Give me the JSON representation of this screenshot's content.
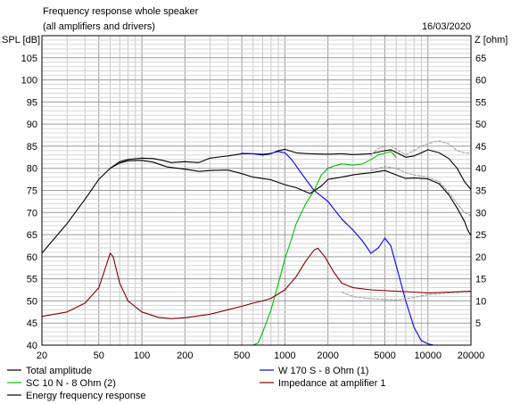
{
  "header": {
    "title": "Frequency response whole speaker",
    "subtitle": "(all amplifiers and drivers)",
    "date": "16/03/2020"
  },
  "chart_data": {
    "type": "line",
    "xscale": "log",
    "grid": true,
    "xlim": [
      20,
      20000
    ],
    "ylim": [
      40,
      110
    ],
    "y2lim": [
      0,
      70
    ],
    "ylabel": "SPL [dB]",
    "y2label": "Z [ohm]",
    "xticks": [
      {
        "v": 20,
        "label": "20"
      },
      {
        "v": 50,
        "label": "50"
      },
      {
        "v": 100,
        "label": "100"
      },
      {
        "v": 200,
        "label": "200"
      },
      {
        "v": 500,
        "label": "500"
      },
      {
        "v": 1000,
        "label": "1000"
      },
      {
        "v": 2000,
        "label": "2000"
      },
      {
        "v": 5000,
        "label": "5000"
      },
      {
        "v": 10000,
        "label": "10000"
      },
      {
        "v": 20000,
        "label": "20000"
      }
    ],
    "yticks": [
      {
        "v": 40,
        "label": "40"
      },
      {
        "v": 45,
        "label": "45"
      },
      {
        "v": 50,
        "label": "50"
      },
      {
        "v": 55,
        "label": "55"
      },
      {
        "v": 60,
        "label": "60"
      },
      {
        "v": 65,
        "label": "65"
      },
      {
        "v": 70,
        "label": "70"
      },
      {
        "v": 75,
        "label": "75"
      },
      {
        "v": 80,
        "label": "80"
      },
      {
        "v": 85,
        "label": "85"
      },
      {
        "v": 90,
        "label": "90"
      },
      {
        "v": 95,
        "label": "95"
      },
      {
        "v": 100,
        "label": "100"
      },
      {
        "v": 105,
        "label": "105"
      }
    ],
    "y2ticks": [
      {
        "v": 5,
        "label": "5"
      },
      {
        "v": 10,
        "label": "10"
      },
      {
        "v": 15,
        "label": "15"
      },
      {
        "v": 20,
        "label": "20"
      },
      {
        "v": 25,
        "label": "25"
      },
      {
        "v": 30,
        "label": "30"
      },
      {
        "v": 35,
        "label": "35"
      },
      {
        "v": 40,
        "label": "40"
      },
      {
        "v": 45,
        "label": "45"
      },
      {
        "v": 50,
        "label": "50"
      },
      {
        "v": 55,
        "label": "55"
      },
      {
        "v": 60,
        "label": "60"
      },
      {
        "v": 65,
        "label": "65"
      }
    ],
    "series": [
      {
        "name": "Total amplitude",
        "color": "#000000",
        "style": "solid",
        "axis": "left",
        "points": [
          [
            20,
            60.8
          ],
          [
            30,
            67.5
          ],
          [
            40,
            73
          ],
          [
            50,
            77.5
          ],
          [
            60,
            80
          ],
          [
            70,
            81.5
          ],
          [
            80,
            82
          ],
          [
            100,
            82.3
          ],
          [
            120,
            82.2
          ],
          [
            140,
            81.8
          ],
          [
            160,
            81.3
          ],
          [
            200,
            81.5
          ],
          [
            250,
            81.3
          ],
          [
            300,
            82.3
          ],
          [
            400,
            82.8
          ],
          [
            500,
            83.3
          ],
          [
            600,
            83.3
          ],
          [
            700,
            83
          ],
          [
            800,
            83.3
          ],
          [
            900,
            84
          ],
          [
            1000,
            84.3
          ],
          [
            1200,
            83.5
          ],
          [
            1500,
            83.3
          ],
          [
            2000,
            83.2
          ],
          [
            2500,
            83.3
          ],
          [
            3000,
            83.1
          ],
          [
            4000,
            83.3
          ],
          [
            5000,
            84
          ],
          [
            5500,
            84.2
          ],
          [
            6000,
            83.6
          ],
          [
            7000,
            82.5
          ],
          [
            8000,
            82.8
          ],
          [
            9000,
            83.5
          ],
          [
            10000,
            84.2
          ],
          [
            12000,
            83.5
          ],
          [
            14000,
            82.2
          ],
          [
            16000,
            80
          ],
          [
            18000,
            77
          ],
          [
            20000,
            75.2
          ]
        ]
      },
      {
        "name": "W 170 S - 8 Ohm (1)",
        "color": "#0000ff",
        "style": "solid",
        "axis": "left",
        "points": [
          [
            500,
            83.4
          ],
          [
            600,
            83.3
          ],
          [
            700,
            83.2
          ],
          [
            800,
            83.4
          ],
          [
            900,
            83.8
          ],
          [
            1000,
            83.5
          ],
          [
            1100,
            82.2
          ],
          [
            1200,
            80.5
          ],
          [
            1400,
            77.5
          ],
          [
            1600,
            75
          ],
          [
            2000,
            72.5
          ],
          [
            2500,
            68.5
          ],
          [
            3000,
            66
          ],
          [
            3500,
            63.5
          ],
          [
            4000,
            60.8
          ],
          [
            4500,
            62
          ],
          [
            5000,
            64.2
          ],
          [
            5500,
            62.5
          ],
          [
            6000,
            58
          ],
          [
            7000,
            50
          ],
          [
            8000,
            44
          ],
          [
            9000,
            41
          ],
          [
            10000,
            40.3
          ],
          [
            11000,
            40
          ]
        ]
      },
      {
        "name": "SC 10 N - 8 Ohm (2)",
        "color": "#00c000",
        "style": "solid",
        "axis": "left",
        "points": [
          [
            20,
            40
          ],
          [
            600,
            40
          ],
          [
            650,
            40.5
          ],
          [
            700,
            43
          ],
          [
            750,
            45.5
          ],
          [
            800,
            48
          ],
          [
            900,
            54
          ],
          [
            1000,
            59.5
          ],
          [
            1100,
            63.5
          ],
          [
            1200,
            67.5
          ],
          [
            1400,
            72
          ],
          [
            1600,
            75
          ],
          [
            1800,
            78.5
          ],
          [
            2000,
            80
          ],
          [
            2200,
            80.5
          ],
          [
            2500,
            81
          ],
          [
            3000,
            80.7
          ],
          [
            3500,
            81
          ],
          [
            4000,
            82
          ],
          [
            4500,
            83
          ],
          [
            5000,
            83.4
          ],
          [
            5500,
            83.8
          ],
          [
            6000,
            82.5
          ]
        ]
      },
      {
        "name": "Energy frequency response",
        "color": "#000000",
        "style": "solid",
        "axis": "left",
        "points": [
          [
            60,
            80
          ],
          [
            70,
            81.2
          ],
          [
            80,
            81.7
          ],
          [
            100,
            81.8
          ],
          [
            120,
            81.4
          ],
          [
            150,
            80.3
          ],
          [
            200,
            79.8
          ],
          [
            250,
            79.3
          ],
          [
            300,
            79.5
          ],
          [
            400,
            79.6
          ],
          [
            500,
            78.8
          ],
          [
            600,
            78
          ],
          [
            800,
            77.4
          ],
          [
            1000,
            76.3
          ],
          [
            1200,
            75.6
          ],
          [
            1500,
            74.3
          ],
          [
            1800,
            76
          ],
          [
            2000,
            77.5
          ],
          [
            2500,
            78
          ],
          [
            3000,
            78.5
          ],
          [
            3500,
            78.8
          ],
          [
            4000,
            79
          ],
          [
            5000,
            79.5
          ],
          [
            6000,
            78.5
          ],
          [
            7000,
            77.7
          ],
          [
            8000,
            77.8
          ],
          [
            10000,
            77.6
          ],
          [
            12000,
            76.5
          ],
          [
            14000,
            74
          ],
          [
            16000,
            71
          ],
          [
            18000,
            68
          ],
          [
            19000,
            66
          ],
          [
            20000,
            64.8
          ]
        ]
      },
      {
        "name": "Impedance at amplifier 1",
        "color": "#800000",
        "style": "solid",
        "axis": "right",
        "points": [
          [
            20,
            6.5
          ],
          [
            30,
            7.5
          ],
          [
            40,
            9.5
          ],
          [
            50,
            13
          ],
          [
            55,
            17
          ],
          [
            60,
            20.8
          ],
          [
            63,
            20
          ],
          [
            70,
            14
          ],
          [
            80,
            10
          ],
          [
            100,
            7.5
          ],
          [
            130,
            6.3
          ],
          [
            160,
            6
          ],
          [
            200,
            6.2
          ],
          [
            300,
            7
          ],
          [
            400,
            8
          ],
          [
            500,
            8.8
          ],
          [
            600,
            9.5
          ],
          [
            700,
            10
          ],
          [
            800,
            10.6
          ],
          [
            1000,
            12.5
          ],
          [
            1200,
            15.5
          ],
          [
            1400,
            19
          ],
          [
            1600,
            21.5
          ],
          [
            1700,
            21.9
          ],
          [
            1900,
            20
          ],
          [
            2200,
            16.5
          ],
          [
            2500,
            14
          ],
          [
            3000,
            13
          ],
          [
            4000,
            12.5
          ],
          [
            6000,
            12.2
          ],
          [
            8000,
            12
          ],
          [
            10000,
            11.8
          ],
          [
            14000,
            12
          ],
          [
            20000,
            12.2
          ]
        ]
      },
      {
        "name": "",
        "color": "#a0a0a0",
        "style": "dashed",
        "axis": "left",
        "points": [
          [
            4000,
            83
          ],
          [
            4500,
            84.5
          ],
          [
            5000,
            85
          ],
          [
            5500,
            85
          ],
          [
            6000,
            84.3
          ],
          [
            7000,
            83
          ],
          [
            8000,
            84
          ],
          [
            9000,
            85
          ],
          [
            10000,
            85.5
          ],
          [
            11000,
            86
          ],
          [
            12000,
            86.2
          ],
          [
            14000,
            85.5
          ],
          [
            16000,
            84
          ],
          [
            18000,
            83.5
          ],
          [
            20000,
            83.4
          ]
        ]
      },
      {
        "name": "",
        "color": "#a0a0a0",
        "style": "dashed",
        "axis": "left",
        "points": [
          [
            4000,
            79.5
          ],
          [
            5000,
            80.4
          ],
          [
            6000,
            80
          ],
          [
            7000,
            79
          ],
          [
            8000,
            78.5
          ],
          [
            10000,
            78
          ],
          [
            12000,
            77
          ],
          [
            14000,
            74.5
          ],
          [
            16000,
            72
          ],
          [
            18000,
            70
          ],
          [
            20000,
            69.3
          ]
        ]
      },
      {
        "name": "",
        "color": "#a0a0a0",
        "style": "dashed",
        "axis": "right",
        "points": [
          [
            2500,
            12
          ],
          [
            3000,
            11
          ],
          [
            4000,
            10.5
          ],
          [
            6000,
            10.2
          ],
          [
            8000,
            10.8
          ],
          [
            10000,
            11.4
          ],
          [
            14000,
            11.8
          ],
          [
            20000,
            12
          ]
        ]
      }
    ]
  },
  "legend": [
    {
      "label": "Total amplitude",
      "color": "#000000"
    },
    {
      "label": "W 170 S - 8 Ohm (1)",
      "color": "#0000ff"
    },
    {
      "label": "SC 10 N - 8 Ohm (2)",
      "color": "#00c000"
    },
    {
      "label": "Impedance at amplifier 1",
      "color": "#800000"
    },
    {
      "label": "Energy frequency response",
      "color": "#000000"
    }
  ]
}
